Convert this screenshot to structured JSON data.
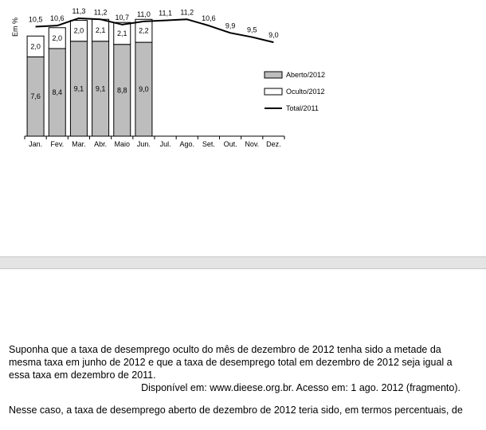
{
  "chart_data": {
    "type": "bar",
    "ylabel": "Em %",
    "categories": [
      "Jan.",
      "Fev.",
      "Mar.",
      "Abr.",
      "Maio",
      "Jun.",
      "Jul.",
      "Ago.",
      "Set.",
      "Out.",
      "Nov.",
      "Dez."
    ],
    "series": [
      {
        "name": "Aberto/2012",
        "kind": "bar",
        "stack": "2012",
        "color": "#bdbdbd",
        "values": [
          7.6,
          8.4,
          9.1,
          9.1,
          8.8,
          9.0,
          null,
          null,
          null,
          null,
          null,
          null
        ],
        "labels": [
          "7,6",
          "8,4",
          "9,1",
          "9,1",
          "8,8",
          "9,0"
        ]
      },
      {
        "name": "Oculto/2012",
        "kind": "bar",
        "stack": "2012",
        "color": "#ffffff",
        "values": [
          2.0,
          2.0,
          2.0,
          2.1,
          2.1,
          2.2,
          null,
          null,
          null,
          null,
          null,
          null
        ],
        "labels": [
          "2,0",
          "2,0",
          "2,0",
          "2,1",
          "2,1",
          "2,2"
        ]
      },
      {
        "name": "Total/2011",
        "kind": "line",
        "color": "#000000",
        "values": [
          10.5,
          10.6,
          11.3,
          11.2,
          10.7,
          11.0,
          11.1,
          11.2,
          10.6,
          9.9,
          9.5,
          9.0
        ],
        "labels": [
          "10,5",
          "10,6",
          "11,3",
          "11,2",
          "10,7",
          "11,0",
          "11,1",
          "11,2",
          "10,6",
          "9,9",
          "9,5",
          "9,0"
        ]
      }
    ],
    "ylim": [
      0,
      12
    ],
    "grid": false,
    "legend": "right"
  },
  "question": {
    "paragraph": "Suponha que a taxa de desemprego oculto do mês de dezembro de 2012 tenha sido a metade da mesma taxa em junho de 2012 e que a taxa de desemprego total em dezembro de 2012 seja igual a essa taxa em dezembro de 2011.",
    "source": "Disponível em: www.dieese.org.br. Acesso em: 1 ago. 2012 (fragmento).",
    "prompt": "Nesse caso, a taxa de desemprego aberto de dezembro de 2012 teria sido, em termos percentuais, de"
  }
}
